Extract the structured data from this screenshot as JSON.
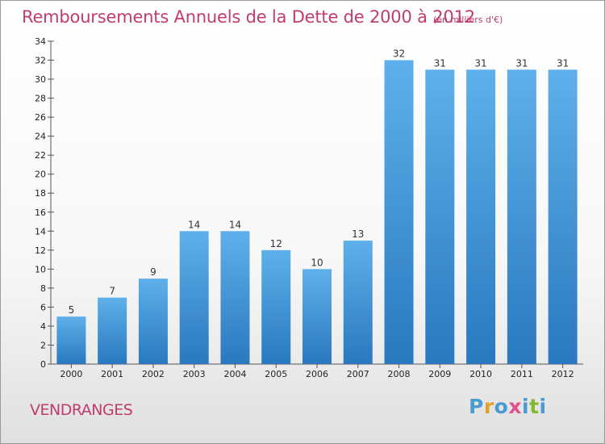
{
  "header": {
    "title": "Remboursements Annuels de la Dette de 2000 à 2012",
    "subtitle": "(en milliers d'€)"
  },
  "footer": {
    "commune": "VENDRANGES",
    "brand_letters": [
      "P",
      "r",
      "o",
      "x",
      "i",
      "t",
      "i"
    ]
  },
  "colors": {
    "title": "#c03c6e",
    "bar_top": "#5fb0ea",
    "bar_bottom": "#2a78bf",
    "brand": [
      "#4a9ad4",
      "#e2a030",
      "#4a9ad4",
      "#e05090",
      "#4a9ad4",
      "#84b830",
      "#4a9ad4"
    ]
  },
  "chart_data": {
    "type": "bar",
    "categories": [
      "2000",
      "2001",
      "2002",
      "2003",
      "2004",
      "2005",
      "2006",
      "2007",
      "2008",
      "2009",
      "2010",
      "2011",
      "2012"
    ],
    "values": [
      5,
      7,
      9,
      14,
      14,
      12,
      10,
      13,
      32,
      31,
      31,
      31,
      31
    ],
    "title": "Remboursements Annuels de la Dette de 2000 à 2012",
    "xlabel": "",
    "ylabel": "",
    "ylim": [
      0,
      34
    ],
    "yticks": [
      0,
      2,
      4,
      6,
      8,
      10,
      12,
      14,
      16,
      18,
      20,
      22,
      24,
      26,
      28,
      30,
      32,
      34
    ],
    "grid": false
  }
}
